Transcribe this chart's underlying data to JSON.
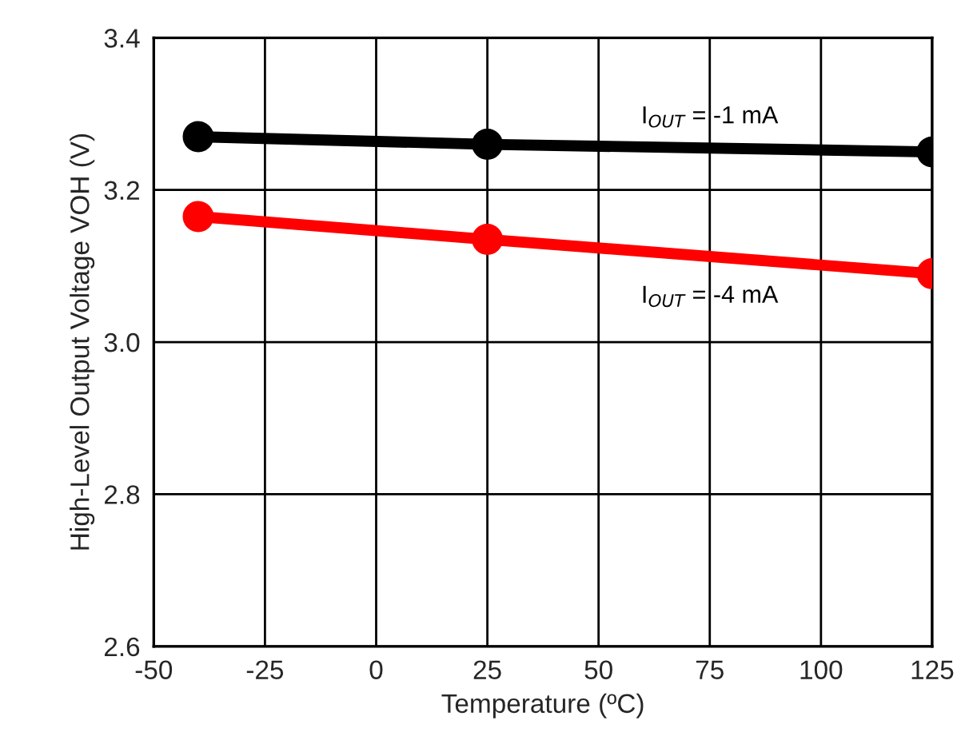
{
  "chart_data": {
    "type": "line",
    "xlabel": "Temperature (ºC)",
    "ylabel": "High-Level Output Voltage VOH (V)",
    "x": [
      -40,
      25,
      125
    ],
    "series": [
      {
        "name": "I$_{OUT}$ = -1 mA",
        "color": "#000000",
        "values": [
          3.27,
          3.26,
          3.25
        ]
      },
      {
        "name": "I$_{OUT}$ = -4 mA",
        "color": "#ff0000",
        "values": [
          3.165,
          3.135,
          3.09
        ]
      }
    ],
    "xlim": [
      -50,
      125
    ],
    "xticks": [
      -50,
      -25,
      0,
      25,
      50,
      75,
      100,
      125
    ],
    "ylim": [
      2.6,
      3.4
    ],
    "yticks": [
      {
        "value": 2.6,
        "label": "2.6"
      },
      {
        "value": 2.8,
        "label": "2.8"
      },
      {
        "value": 3.0,
        "label": "3.0"
      },
      {
        "value": 3.2,
        "label": "3.2"
      },
      {
        "value": 3.4,
        "label": "3.4"
      }
    ],
    "grid": true,
    "marker": "circle",
    "line_style": "solid",
    "legend": false
  }
}
